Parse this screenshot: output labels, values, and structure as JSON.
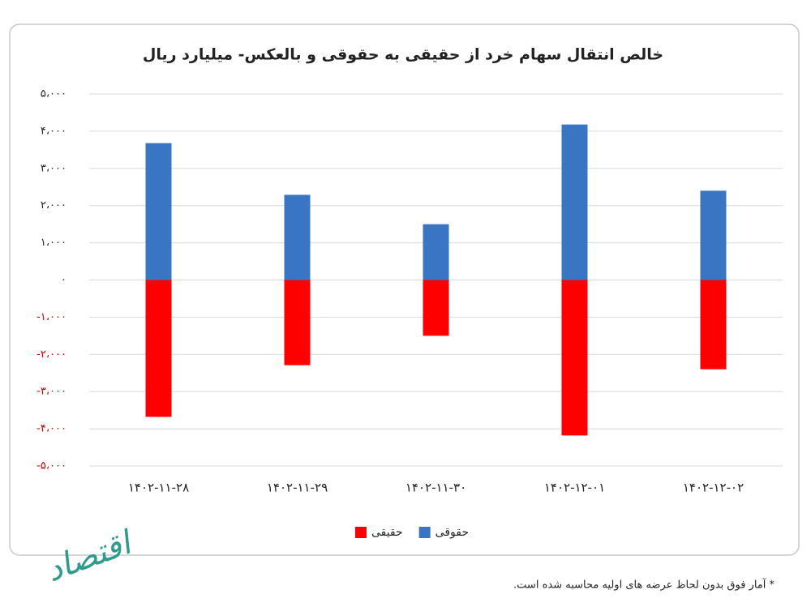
{
  "chart_data": {
    "type": "bar",
    "title": "خالص انتقال سهام خرد از حقیقی به حقوقی و بالعکس- میلیارد ریال",
    "categories": [
      "۱۴۰۲-۱۱-۲۸",
      "۱۴۰۲-۱۱-۲۹",
      "۱۴۰۲-۱۱-۳۰",
      "۱۴۰۲-۱۲-۰۱",
      "۱۴۰۲-۱۲-۰۲"
    ],
    "series": [
      {
        "name": "حقیقی",
        "color": "#ff0000",
        "values": [
          -3680,
          -2290,
          -1500,
          -4180,
          -2400
        ]
      },
      {
        "name": "حقوقی",
        "color": "#3a75c4",
        "values": [
          3680,
          2290,
          1500,
          4180,
          2400
        ]
      }
    ],
    "ylim": [
      -5000,
      5000
    ],
    "yticks": [
      {
        "value": -5000,
        "label": "-۵،۰۰۰"
      },
      {
        "value": -4000,
        "label": "-۴،۰۰۰"
      },
      {
        "value": -3000,
        "label": "-۳،۰۰۰"
      },
      {
        "value": -2000,
        "label": "-۲،۰۰۰"
      },
      {
        "value": -1000,
        "label": "-۱،۰۰۰"
      },
      {
        "value": 0,
        "label": "۰"
      },
      {
        "value": 1000,
        "label": "۱،۰۰۰"
      },
      {
        "value": 2000,
        "label": "۲،۰۰۰"
      },
      {
        "value": 3000,
        "label": "۳،۰۰۰"
      },
      {
        "value": 4000,
        "label": "۴،۰۰۰"
      },
      {
        "value": 5000,
        "label": "۵،۰۰۰"
      }
    ],
    "grid": true,
    "legend": "bottom"
  },
  "footnote": "* آمار فوق بدون لحاظ عرضه های اولیه محاسبه شده است.",
  "logo": "اقتصاد"
}
